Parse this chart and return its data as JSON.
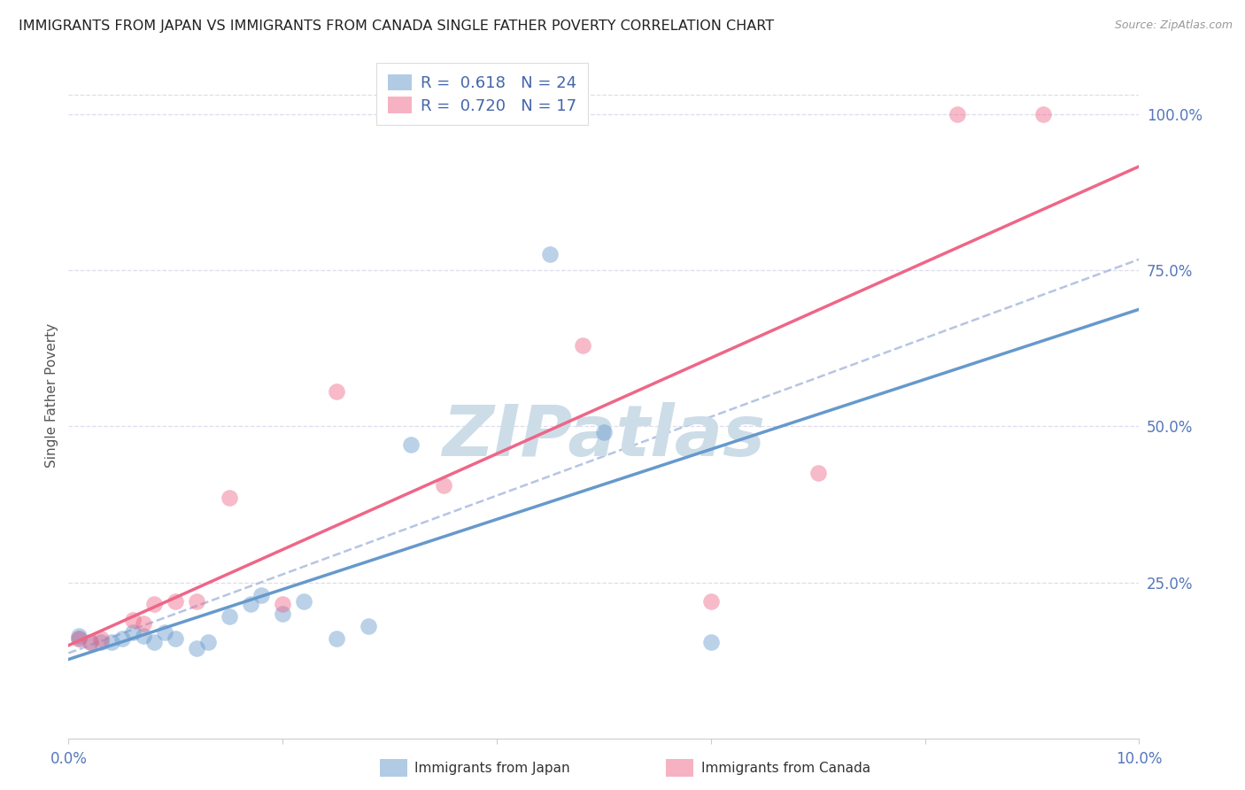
{
  "title": "IMMIGRANTS FROM JAPAN VS IMMIGRANTS FROM CANADA SINGLE FATHER POVERTY CORRELATION CHART",
  "source": "Source: ZipAtlas.com",
  "ylabel": "Single Father Poverty",
  "japan_color": "#6699CC",
  "canada_color": "#EE6688",
  "dashed_color": "#AABBDD",
  "japan_r": "0.618",
  "japan_n": "24",
  "canada_r": "0.720",
  "canada_n": "17",
  "legend_text_color": "#4466AA",
  "background_color": "#FFFFFF",
  "grid_color": "#DDDDEE",
  "watermark": "ZIPatlas",
  "watermark_color": "#CCDDE8",
  "scatter_size": 180,
  "scatter_alpha": 0.45,
  "title_fontsize": 11.5,
  "axis_label_color": "#5577BB",
  "japan_x": [
    0.001,
    0.001,
    0.002,
    0.003,
    0.004,
    0.005,
    0.006,
    0.007,
    0.008,
    0.009,
    0.01,
    0.012,
    0.013,
    0.015,
    0.017,
    0.018,
    0.02,
    0.022,
    0.025,
    0.028,
    0.032,
    0.045,
    0.05,
    0.06
  ],
  "japan_y": [
    0.165,
    0.16,
    0.155,
    0.155,
    0.155,
    0.16,
    0.17,
    0.165,
    0.155,
    0.17,
    0.16,
    0.145,
    0.155,
    0.195,
    0.215,
    0.23,
    0.2,
    0.22,
    0.16,
    0.18,
    0.47,
    0.775,
    0.49,
    0.155
  ],
  "canada_x": [
    0.001,
    0.002,
    0.003,
    0.006,
    0.007,
    0.008,
    0.01,
    0.012,
    0.015,
    0.02,
    0.025,
    0.035,
    0.048,
    0.06,
    0.07,
    0.083,
    0.091
  ],
  "canada_y": [
    0.16,
    0.155,
    0.16,
    0.19,
    0.185,
    0.215,
    0.22,
    0.22,
    0.385,
    0.215,
    0.555,
    0.405,
    0.63,
    0.22,
    0.425,
    1.0,
    1.0
  ],
  "xlim": [
    0.0,
    0.1
  ],
  "ylim": [
    0.0,
    1.1
  ],
  "xticks": [
    0.0,
    0.1
  ],
  "xticklabels": [
    "0.0%",
    "10.0%"
  ],
  "right_yticks": [
    0.0,
    0.25,
    0.5,
    0.75,
    1.0
  ],
  "right_yticklabels": [
    "",
    "25.0%",
    "50.0%",
    "75.0%",
    "100.0%"
  ]
}
